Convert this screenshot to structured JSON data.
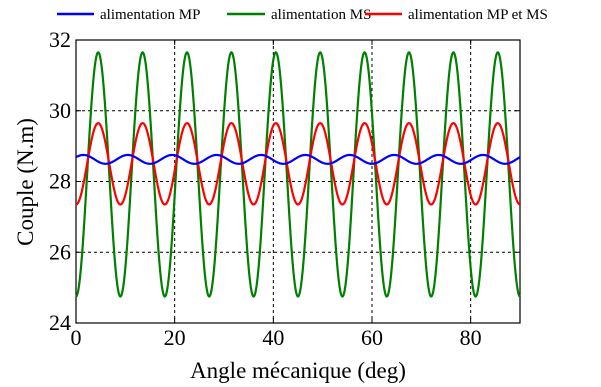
{
  "chart_data": {
    "type": "line",
    "title": "",
    "xlabel": "Angle mécanique (deg)",
    "ylabel": "Couple (N.m)",
    "xlim": [
      0,
      90
    ],
    "ylim": [
      24,
      32
    ],
    "xticks": [
      0,
      20,
      40,
      60,
      80
    ],
    "yticks": [
      24,
      26,
      28,
      30,
      32
    ],
    "xtick_labels": [
      "0",
      "20",
      "40",
      "60",
      "80"
    ],
    "ytick_labels": [
      "24",
      "26",
      "28",
      "30",
      "32"
    ],
    "grid": true,
    "legend_position": "top",
    "series": [
      {
        "name": "alimentation MP",
        "color": "#0000ff",
        "mean": 28.62,
        "min": 28.5,
        "max": 28.75,
        "period_deg": 9,
        "first_peak_deg": 1.5
      },
      {
        "name": "alimentation MS",
        "color": "#008000",
        "mean": 28.2,
        "min": 24.75,
        "max": 31.65,
        "period_deg": 9,
        "first_peak_deg": 4.5
      },
      {
        "name": "alimentation MP et MS",
        "color": "#ff0000",
        "mean": 28.5,
        "min": 27.35,
        "max": 29.65,
        "period_deg": 9,
        "first_peak_deg": 4.5
      }
    ]
  }
}
